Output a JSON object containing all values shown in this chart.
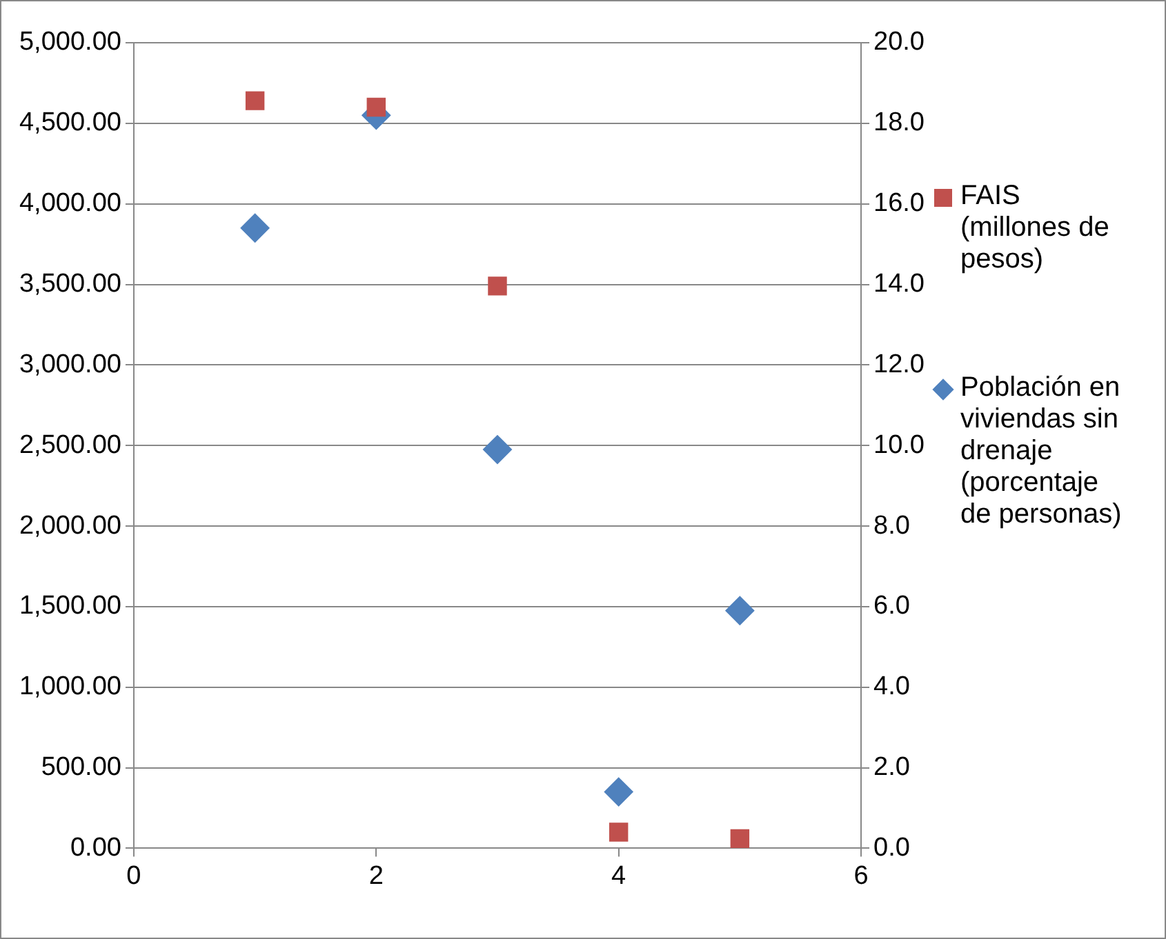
{
  "chart_data": {
    "type": "scatter",
    "x": [
      1,
      2,
      3,
      4,
      5
    ],
    "series": [
      {
        "name": "FAIS (millones de pesos)",
        "color": "#c0504d",
        "marker": "square",
        "values": [
          4640,
          4600,
          3490,
          100,
          60
        ]
      },
      {
        "name": "Población en viviendas sin drenaje (porcentaje de personas)",
        "color": "#4f81bd",
        "marker": "diamond",
        "axis": "y2",
        "values": [
          15.4,
          18.2,
          9.9,
          1.4,
          5.9
        ]
      }
    ],
    "xlim": [
      0,
      6
    ],
    "xticks": [
      0,
      2,
      4,
      6
    ],
    "ylim": [
      0,
      5000
    ],
    "yticks": [
      {
        "value": 0,
        "label": "0.00"
      },
      {
        "value": 500,
        "label": "500.00"
      },
      {
        "value": 1000,
        "label": "1,000.00"
      },
      {
        "value": 1500,
        "label": "1,500.00"
      },
      {
        "value": 2000,
        "label": "2,000.00"
      },
      {
        "value": 2500,
        "label": "2,500.00"
      },
      {
        "value": 3000,
        "label": "3,000.00"
      },
      {
        "value": 3500,
        "label": "3,500.00"
      },
      {
        "value": 4000,
        "label": "4,000.00"
      },
      {
        "value": 4500,
        "label": "4,500.00"
      },
      {
        "value": 5000,
        "label": "5,000.00"
      }
    ],
    "y2lim": [
      0,
      20
    ],
    "y2ticks": [
      {
        "value": 0,
        "label": "0.0"
      },
      {
        "value": 2,
        "label": "2.0"
      },
      {
        "value": 4,
        "label": "4.0"
      },
      {
        "value": 6,
        "label": "6.0"
      },
      {
        "value": 8,
        "label": "8.0"
      },
      {
        "value": 10,
        "label": "10.0"
      },
      {
        "value": 12,
        "label": "12.0"
      },
      {
        "value": 14,
        "label": "14.0"
      },
      {
        "value": 16,
        "label": "16.0"
      },
      {
        "value": 18,
        "label": "18.0"
      },
      {
        "value": 20,
        "label": "20.0"
      }
    ],
    "grid": "y",
    "legend": "right"
  }
}
